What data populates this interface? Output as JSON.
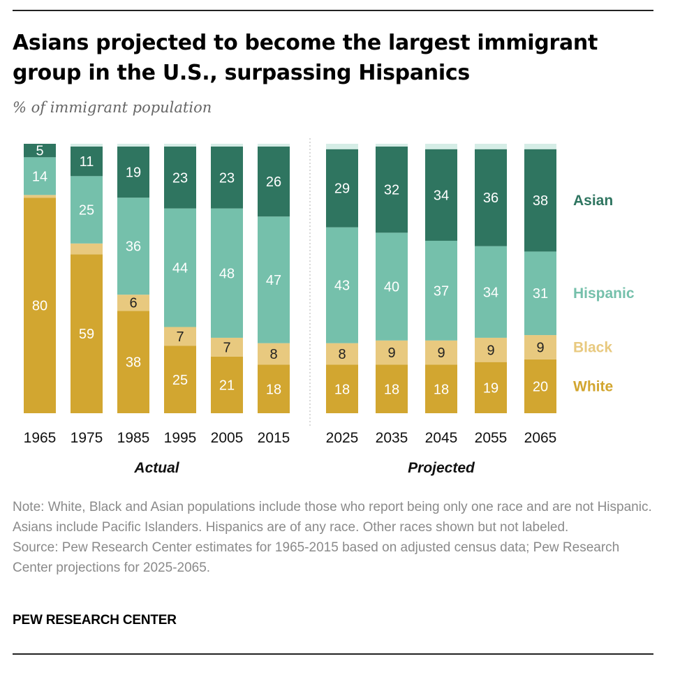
{
  "title": "Asians projected to become the largest immigrant group in the U.S., surpassing Hispanics",
  "subtitle": "% of immigrant population",
  "note": "Note: White, Black and Asian populations include those who report being only one race and are not Hispanic. Asians include Pacific Islanders. Hispanics are of any race. Other races shown but not labeled.",
  "source": "Source: Pew Research Center estimates for 1965-2015 based on adjusted census data; Pew Research Center projections for 2025-2065.",
  "brand": "PEW RESEARCH CENTER",
  "colors": {
    "white": "#d2a630",
    "black": "#e8c97f",
    "hispanic": "#75c0ab",
    "asian": "#2f7560",
    "other": "#d5ede6"
  },
  "chart_data": {
    "type": "bar",
    "stacked": true,
    "ylim": [
      0,
      100
    ],
    "groups": [
      {
        "label": "Actual",
        "categories": [
          "1965",
          "1975",
          "1985",
          "1995",
          "2005",
          "2015"
        ]
      },
      {
        "label": "Projected",
        "categories": [
          "2025",
          "2035",
          "2045",
          "2055",
          "2065"
        ]
      }
    ],
    "categories": [
      "1965",
      "1975",
      "1985",
      "1995",
      "2005",
      "2015",
      "2025",
      "2035",
      "2045",
      "2055",
      "2065"
    ],
    "series": [
      {
        "name": "White",
        "values": [
          80,
          59,
          38,
          25,
          21,
          18,
          18,
          18,
          18,
          19,
          20
        ],
        "labels": [
          "80",
          "59",
          "38",
          "25",
          "21",
          "18",
          "18",
          "18",
          "18",
          "19",
          "20"
        ]
      },
      {
        "name": "Black",
        "values": [
          1,
          4,
          6,
          7,
          7,
          8,
          8,
          9,
          9,
          9,
          9
        ],
        "labels": [
          "",
          "",
          "6",
          "7",
          "7",
          "8",
          "8",
          "9",
          "9",
          "9",
          "9"
        ]
      },
      {
        "name": "Hispanic",
        "values": [
          14,
          25,
          36,
          44,
          48,
          47,
          43,
          40,
          37,
          34,
          31
        ],
        "labels": [
          "14",
          "25",
          "36",
          "44",
          "48",
          "47",
          "43",
          "40",
          "37",
          "34",
          "31"
        ]
      },
      {
        "name": "Asian",
        "values": [
          5,
          11,
          19,
          23,
          23,
          26,
          29,
          32,
          34,
          36,
          38
        ],
        "labels": [
          "5",
          "11",
          "19",
          "23",
          "23",
          "26",
          "29",
          "32",
          "34",
          "36",
          "38"
        ]
      },
      {
        "name": "",
        "values": [
          0,
          1,
          1,
          1,
          1,
          1,
          2,
          1,
          2,
          2,
          2
        ],
        "labels": [
          "",
          "",
          "",
          "",
          "",
          "",
          "",
          "",
          "",
          "",
          ""
        ]
      }
    ],
    "legend": [
      "Asian",
      "Hispanic",
      "Black",
      "White"
    ],
    "legend_placement": "right",
    "grid": false
  }
}
